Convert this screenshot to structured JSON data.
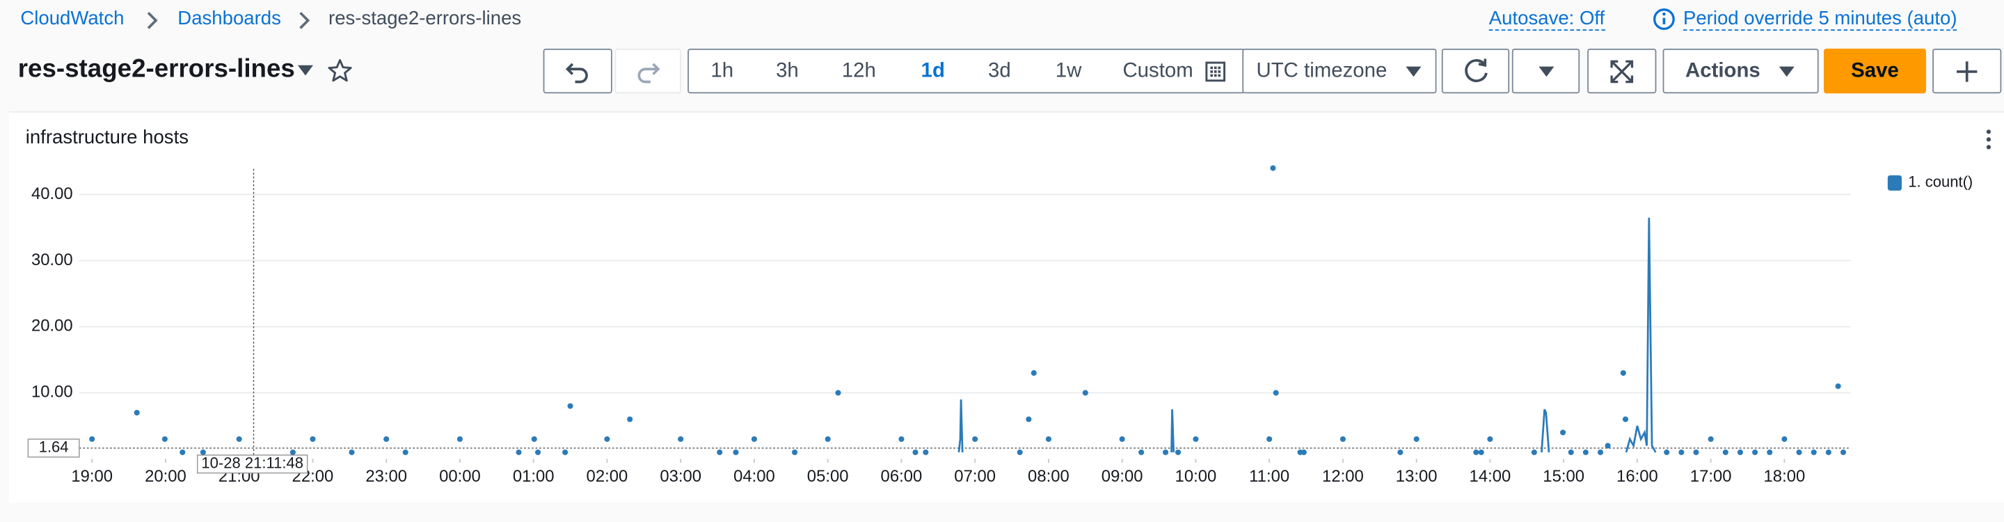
{
  "breadcrumb": [
    "CloudWatch",
    "Dashboards",
    "res-stage2-errors-lines"
  ],
  "autosave": "Autosave: Off",
  "period": "Period override 5 minutes (auto)",
  "dashboard_title": "res-stage2-errors-lines",
  "time_ranges": [
    "1h",
    "3h",
    "12h",
    "1d",
    "3d",
    "1w",
    "Custom"
  ],
  "active_range": "1d",
  "timezone": "UTC timezone",
  "actions": "Actions",
  "save": "Save",
  "widget": {
    "title": "infrastructure hosts",
    "chart_data": {
      "type": "line",
      "legend": "top-right",
      "grid": true,
      "xlim": [
        -0.3,
        23.9
      ],
      "ylim": [
        0,
        45
      ],
      "yticks": [
        {
          "value": 10,
          "label": "10.00"
        },
        {
          "value": 20,
          "label": "20.00"
        },
        {
          "value": 30,
          "label": "30.00"
        },
        {
          "value": 40,
          "label": "40.00"
        }
      ],
      "xticks": [
        {
          "value": 0,
          "label": "19:00"
        },
        {
          "value": 1,
          "label": "20:00"
        },
        {
          "value": 2,
          "label": "21:00"
        },
        {
          "value": 3,
          "label": "22:00"
        },
        {
          "value": 4,
          "label": "23:00"
        },
        {
          "value": 5,
          "label": "00:00"
        },
        {
          "value": 6,
          "label": "01:00"
        },
        {
          "value": 7,
          "label": "02:00"
        },
        {
          "value": 8,
          "label": "03:00"
        },
        {
          "value": 9,
          "label": "04:00"
        },
        {
          "value": 10,
          "label": "05:00"
        },
        {
          "value": 11,
          "label": "06:00"
        },
        {
          "value": 12,
          "label": "07:00"
        },
        {
          "value": 13,
          "label": "08:00"
        },
        {
          "value": 14,
          "label": "09:00"
        },
        {
          "value": 15,
          "label": "10:00"
        },
        {
          "value": 16,
          "label": "11:00"
        },
        {
          "value": 17,
          "label": "12:00"
        },
        {
          "value": 18,
          "label": "13:00"
        },
        {
          "value": 19,
          "label": "14:00"
        },
        {
          "value": 20,
          "label": "15:00"
        },
        {
          "value": 21,
          "label": "16:00"
        },
        {
          "value": 22,
          "label": "17:00"
        },
        {
          "value": 23,
          "label": "18:00"
        }
      ],
      "hover": {
        "y": 1.64,
        "x": 2.197,
        "x_label": "10-28 21:11:48"
      },
      "series": [
        {
          "name": "1. count()",
          "color": "#2b7bb9",
          "x": [
            0,
            null,
            0.61,
            null,
            0.99,
            null,
            1.23,
            null,
            1.51,
            null,
            2,
            null,
            2.73,
            null,
            3,
            null,
            3.53,
            null,
            4,
            null,
            4.26,
            null,
            5,
            null,
            5.8,
            null,
            6.01,
            null,
            6.06,
            null,
            6.43,
            null,
            6.5,
            null,
            7,
            null,
            7.31,
            null,
            8,
            null,
            8.53,
            null,
            8.75,
            null,
            9,
            null,
            9.55,
            null,
            10,
            null,
            10.14,
            null,
            11,
            null,
            11.19,
            null,
            11.33,
            null,
            11.78,
            11.8,
            11.81,
            11.83,
            null,
            12,
            null,
            12.61,
            null,
            12.73,
            null,
            12.8,
            null,
            13,
            null,
            13.5,
            null,
            14,
            null,
            14.26,
            null,
            14.59,
            null,
            14.67,
            14.68,
            14.7,
            null,
            14.76,
            null,
            15,
            null,
            16,
            null,
            16.05,
            null,
            16.09,
            null,
            16.42,
            null,
            16.47,
            null,
            17,
            null,
            17.78,
            null,
            18,
            null,
            18.81,
            null,
            18.88,
            null,
            19,
            null,
            19.6,
            null,
            19.7,
            19.74,
            19.76,
            19.8,
            null,
            19.99,
            null,
            20.1,
            null,
            20.3,
            null,
            20.5,
            null,
            20.6,
            null,
            20.81,
            null,
            20.84,
            null,
            20.85,
            20.9,
            20.95,
            21,
            21.05,
            21.1,
            21.13,
            21.16,
            21.2,
            21.25,
            null,
            21.4,
            null,
            21.6,
            null,
            21.8,
            null,
            22,
            null,
            22.2,
            null,
            22.4,
            null,
            22.6,
            null,
            22.8,
            null,
            23,
            null,
            23.2,
            null,
            23.4,
            null,
            23.6,
            null,
            23.73,
            null,
            23.8
          ],
          "values": [
            3,
            null,
            7,
            null,
            3,
            null,
            1,
            null,
            1,
            null,
            3,
            null,
            1,
            null,
            3,
            null,
            1,
            null,
            3,
            null,
            1,
            null,
            3,
            null,
            1,
            null,
            3,
            null,
            1,
            null,
            1,
            null,
            8,
            null,
            3,
            null,
            6,
            null,
            3,
            null,
            1,
            null,
            1,
            null,
            3,
            null,
            1,
            null,
            3,
            null,
            10,
            null,
            3,
            null,
            1,
            null,
            1,
            null,
            1,
            3,
            9,
            1,
            null,
            3,
            null,
            1,
            null,
            6,
            null,
            13,
            null,
            3,
            null,
            10,
            null,
            3,
            null,
            1,
            null,
            1,
            null,
            1,
            7.5,
            1,
            null,
            1,
            null,
            3,
            null,
            3,
            null,
            44,
            null,
            10,
            null,
            1,
            null,
            1,
            null,
            3,
            null,
            1,
            null,
            3,
            null,
            1,
            null,
            1,
            null,
            3,
            null,
            1,
            null,
            1,
            7.5,
            7,
            1,
            null,
            4,
            null,
            1,
            null,
            1,
            null,
            1,
            null,
            2,
            null,
            13,
            null,
            6,
            null,
            1,
            3,
            2,
            5,
            3,
            4,
            2,
            36.5,
            2,
            1,
            null,
            1,
            null,
            1,
            null,
            1,
            null,
            3,
            null,
            1,
            null,
            1,
            null,
            1,
            null,
            1,
            null,
            3,
            null,
            1,
            null,
            1,
            null,
            1,
            null,
            11,
            null,
            1
          ]
        }
      ]
    }
  }
}
